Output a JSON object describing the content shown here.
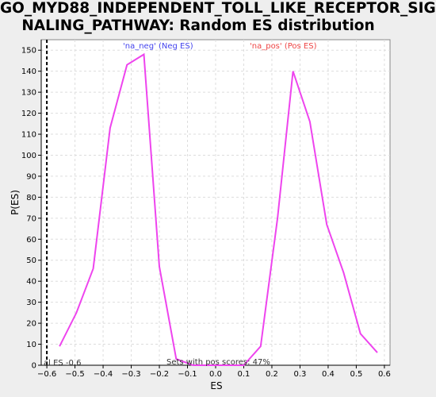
{
  "title_line1": "GO_MYD88_INDEPENDENT_TOLL_LIKE_RECEPTOR_SIG",
  "title_line2": "NALING_PATHWAY: Random ES distribution",
  "chart_data": {
    "type": "line",
    "xlabel": "ES",
    "ylabel": "P(ES)",
    "xlim": [
      -0.62,
      0.62
    ],
    "ylim": [
      0,
      155
    ],
    "xticks": [
      -0.6,
      -0.5,
      -0.4,
      -0.3,
      -0.2,
      -0.1,
      0.0,
      0.1,
      0.2,
      0.3,
      0.4,
      0.5,
      0.6
    ],
    "xtick_labels": [
      "−0.6",
      "−0.5",
      "−0.4",
      "−0.3",
      "−0.2",
      "−0.1",
      "0.0",
      "0.1",
      "0.2",
      "0.3",
      "0.4",
      "0.5",
      "0.6"
    ],
    "yticks": [
      0,
      10,
      20,
      30,
      40,
      50,
      60,
      70,
      80,
      90,
      100,
      110,
      120,
      130,
      140,
      150
    ],
    "grid": true,
    "series": [
      {
        "color": "#ee44ee",
        "x": [
          -0.555,
          -0.495,
          -0.435,
          -0.375,
          -0.315,
          -0.255,
          -0.2,
          -0.14,
          -0.08,
          0.0,
          0.1,
          0.16,
          0.22,
          0.275,
          0.335,
          0.395,
          0.455,
          0.515,
          0.575
        ],
        "y": [
          9,
          25,
          46,
          113,
          143,
          148,
          47,
          3,
          0,
          0,
          0,
          9,
          70,
          140,
          116,
          67,
          44,
          15,
          6
        ]
      }
    ],
    "actual_es": -0.6,
    "actual_es_label": "al ES -0.6",
    "annotations": {
      "neg_label": "'na_neg' (Neg ES)",
      "pos_label": "'na_pos' (Pos ES)",
      "neg_color": "#4444ee",
      "pos_color": "#ee4444",
      "bottom_label": "Sets with pos scores: 47%"
    }
  }
}
